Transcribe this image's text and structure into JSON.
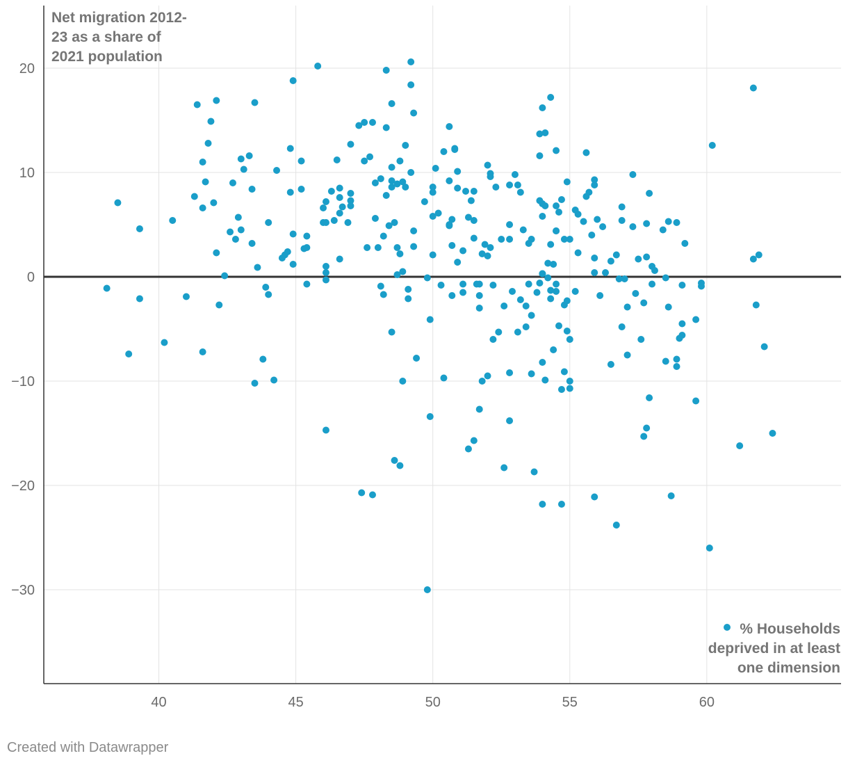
{
  "chart_data": {
    "type": "scatter",
    "title": "Net migration 2012-23 as a share of 2021 population",
    "ylabel_lines": [
      "Net migration 2012-",
      "23 as a share of",
      "2021 population"
    ],
    "legend_lines": [
      "% Households",
      "deprived in at least",
      "one dimension"
    ],
    "xlim": [
      35.8,
      64.9
    ],
    "ylim": [
      -39,
      26
    ],
    "x_ticks": [
      40,
      45,
      50,
      55,
      60
    ],
    "x_tick_labels": [
      "40",
      "45",
      "50",
      "55",
      "60"
    ],
    "y_ticks": [
      20,
      10,
      0,
      -10,
      -20,
      -30
    ],
    "y_tick_labels": [
      "20",
      "10",
      "0",
      "−10",
      "−20",
      "−30"
    ],
    "grid": true,
    "point_color": "#1a9ec9",
    "series": [
      {
        "name": "% Households deprived in at least one dimension",
        "points": [
          [
            38.1,
            -1.1
          ],
          [
            38.5,
            7.1
          ],
          [
            38.9,
            -7.4
          ],
          [
            39.3,
            4.6
          ],
          [
            39.3,
            -2.1
          ],
          [
            40.2,
            -6.3
          ],
          [
            40.5,
            5.4
          ],
          [
            41.0,
            -1.9
          ],
          [
            41.3,
            7.7
          ],
          [
            41.4,
            16.5
          ],
          [
            41.6,
            11.0
          ],
          [
            41.6,
            6.6
          ],
          [
            41.6,
            -7.2
          ],
          [
            41.7,
            9.1
          ],
          [
            41.8,
            12.8
          ],
          [
            41.9,
            14.9
          ],
          [
            42.0,
            7.1
          ],
          [
            42.1,
            16.9
          ],
          [
            42.1,
            2.3
          ],
          [
            42.2,
            -2.7
          ],
          [
            42.4,
            0.1
          ],
          [
            42.6,
            4.3
          ],
          [
            42.7,
            9.0
          ],
          [
            42.8,
            3.6
          ],
          [
            42.9,
            5.7
          ],
          [
            43.0,
            4.5
          ],
          [
            43.0,
            11.3
          ],
          [
            43.1,
            10.3
          ],
          [
            43.3,
            11.6
          ],
          [
            43.4,
            3.2
          ],
          [
            43.4,
            8.4
          ],
          [
            43.5,
            16.7
          ],
          [
            43.5,
            -10.2
          ],
          [
            43.6,
            0.9
          ],
          [
            43.8,
            -7.9
          ],
          [
            43.9,
            -1.0
          ],
          [
            44.0,
            -1.7
          ],
          [
            44.0,
            5.2
          ],
          [
            44.2,
            -9.9
          ],
          [
            44.3,
            10.2
          ],
          [
            44.5,
            1.8
          ],
          [
            44.6,
            2.1
          ],
          [
            44.7,
            2.4
          ],
          [
            44.8,
            12.3
          ],
          [
            44.8,
            8.1
          ],
          [
            44.9,
            4.1
          ],
          [
            44.9,
            1.2
          ],
          [
            44.9,
            18.8
          ],
          [
            45.2,
            11.1
          ],
          [
            45.2,
            8.4
          ],
          [
            45.3,
            2.7
          ],
          [
            45.4,
            3.9
          ],
          [
            45.4,
            2.8
          ],
          [
            45.4,
            -0.7
          ],
          [
            45.8,
            20.2
          ],
          [
            46.0,
            6.6
          ],
          [
            46.0,
            5.2
          ],
          [
            46.1,
            1.0
          ],
          [
            46.1,
            0.4
          ],
          [
            46.1,
            -0.3
          ],
          [
            46.1,
            5.2
          ],
          [
            46.1,
            7.2
          ],
          [
            46.1,
            -14.7
          ],
          [
            46.3,
            8.2
          ],
          [
            46.4,
            5.4
          ],
          [
            46.5,
            11.2
          ],
          [
            46.6,
            6.1
          ],
          [
            46.6,
            7.6
          ],
          [
            46.6,
            8.5
          ],
          [
            46.6,
            1.7
          ],
          [
            46.7,
            6.7
          ],
          [
            46.9,
            5.2
          ],
          [
            47.0,
            7.3
          ],
          [
            47.0,
            8.0
          ],
          [
            47.0,
            12.7
          ],
          [
            47.0,
            6.8
          ],
          [
            47.3,
            14.5
          ],
          [
            47.4,
            -20.7
          ],
          [
            47.5,
            11.1
          ],
          [
            47.5,
            14.8
          ],
          [
            47.6,
            2.8
          ],
          [
            47.7,
            11.5
          ],
          [
            47.8,
            14.8
          ],
          [
            47.8,
            -20.9
          ],
          [
            47.9,
            9.0
          ],
          [
            47.9,
            5.6
          ],
          [
            48.0,
            2.8
          ],
          [
            48.1,
            9.4
          ],
          [
            48.1,
            -0.9
          ],
          [
            48.2,
            -1.7
          ],
          [
            48.2,
            3.9
          ],
          [
            48.3,
            7.8
          ],
          [
            48.3,
            19.8
          ],
          [
            48.3,
            14.3
          ],
          [
            48.4,
            4.9
          ],
          [
            48.5,
            9.2
          ],
          [
            48.5,
            10.5
          ],
          [
            48.5,
            8.6
          ],
          [
            48.5,
            16.6
          ],
          [
            48.5,
            -5.3
          ],
          [
            48.6,
            5.2
          ],
          [
            48.6,
            -17.6
          ],
          [
            48.7,
            2.8
          ],
          [
            48.7,
            8.9
          ],
          [
            48.7,
            0.2
          ],
          [
            48.8,
            -18.1
          ],
          [
            48.8,
            2.2
          ],
          [
            48.8,
            11.1
          ],
          [
            48.9,
            9.1
          ],
          [
            48.9,
            0.5
          ],
          [
            48.9,
            -10.0
          ],
          [
            49.0,
            8.6
          ],
          [
            49.0,
            12.6
          ],
          [
            49.1,
            -2.1
          ],
          [
            49.1,
            -1.2
          ],
          [
            49.2,
            18.4
          ],
          [
            49.2,
            10.0
          ],
          [
            49.2,
            20.6
          ],
          [
            49.3,
            15.7
          ],
          [
            49.3,
            4.4
          ],
          [
            49.3,
            2.9
          ],
          [
            49.4,
            -7.8
          ],
          [
            49.7,
            7.2
          ],
          [
            49.8,
            -0.1
          ],
          [
            49.8,
            -30.0
          ],
          [
            49.9,
            -4.1
          ],
          [
            49.9,
            -13.4
          ],
          [
            50.0,
            2.1
          ],
          [
            50.0,
            5.8
          ],
          [
            50.0,
            8.1
          ],
          [
            50.0,
            8.6
          ],
          [
            50.1,
            10.4
          ],
          [
            50.2,
            6.1
          ],
          [
            50.3,
            -0.8
          ],
          [
            50.4,
            12.0
          ],
          [
            50.4,
            -9.7
          ],
          [
            50.6,
            5.0
          ],
          [
            50.6,
            9.2
          ],
          [
            50.6,
            14.4
          ],
          [
            50.6,
            4.9
          ],
          [
            50.7,
            5.5
          ],
          [
            50.7,
            3.0
          ],
          [
            50.7,
            -1.8
          ],
          [
            50.8,
            12.3
          ],
          [
            50.8,
            12.2
          ],
          [
            50.9,
            10.1
          ],
          [
            50.9,
            8.5
          ],
          [
            50.9,
            1.4
          ],
          [
            51.1,
            2.5
          ],
          [
            51.1,
            -0.7
          ],
          [
            51.1,
            -1.5
          ],
          [
            51.2,
            8.2
          ],
          [
            51.3,
            5.7
          ],
          [
            51.3,
            -16.5
          ],
          [
            51.4,
            7.3
          ],
          [
            51.5,
            3.7
          ],
          [
            51.5,
            -15.7
          ],
          [
            51.5,
            5.4
          ],
          [
            51.5,
            8.2
          ],
          [
            51.6,
            -0.7
          ],
          [
            51.7,
            -0.7
          ],
          [
            51.7,
            -1.8
          ],
          [
            51.7,
            -12.7
          ],
          [
            51.7,
            -3.0
          ],
          [
            51.8,
            2.2
          ],
          [
            51.8,
            -10.0
          ],
          [
            51.9,
            3.1
          ],
          [
            52.0,
            10.7
          ],
          [
            52.0,
            2.0
          ],
          [
            52.0,
            -9.5
          ],
          [
            52.1,
            2.8
          ],
          [
            52.1,
            9.6
          ],
          [
            52.1,
            9.9
          ],
          [
            52.2,
            -6.0
          ],
          [
            52.2,
            -0.8
          ],
          [
            52.3,
            8.6
          ],
          [
            52.4,
            -5.3
          ],
          [
            52.5,
            3.6
          ],
          [
            52.6,
            -18.3
          ],
          [
            52.6,
            -2.8
          ],
          [
            52.8,
            3.6
          ],
          [
            52.8,
            5.0
          ],
          [
            52.8,
            8.8
          ],
          [
            52.8,
            -9.2
          ],
          [
            52.8,
            -13.8
          ],
          [
            52.9,
            -1.4
          ],
          [
            53.0,
            9.8
          ],
          [
            53.1,
            8.8
          ],
          [
            53.1,
            -5.3
          ],
          [
            53.2,
            8.1
          ],
          [
            53.2,
            -2.2
          ],
          [
            53.3,
            4.5
          ],
          [
            53.4,
            -2.8
          ],
          [
            53.4,
            -4.8
          ],
          [
            53.5,
            3.2
          ],
          [
            53.5,
            -0.7
          ],
          [
            53.6,
            3.6
          ],
          [
            53.6,
            -3.7
          ],
          [
            53.6,
            -9.3
          ],
          [
            53.7,
            -18.7
          ],
          [
            53.8,
            -1.5
          ],
          [
            53.9,
            -0.6
          ],
          [
            53.9,
            13.7
          ],
          [
            53.9,
            11.6
          ],
          [
            53.9,
            7.3
          ],
          [
            54.0,
            16.2
          ],
          [
            54.0,
            7.0
          ],
          [
            54.0,
            5.8
          ],
          [
            54.0,
            0.3
          ],
          [
            54.0,
            0.3
          ],
          [
            54.0,
            -8.2
          ],
          [
            54.0,
            -21.8
          ],
          [
            54.1,
            13.8
          ],
          [
            54.1,
            6.8
          ],
          [
            54.1,
            -9.9
          ],
          [
            54.2,
            1.3
          ],
          [
            54.2,
            -0.1
          ],
          [
            54.3,
            3.1
          ],
          [
            54.3,
            17.2
          ],
          [
            54.3,
            -2.1
          ],
          [
            54.3,
            -1.3
          ],
          [
            54.4,
            -7.0
          ],
          [
            54.4,
            1.2
          ],
          [
            54.5,
            4.4
          ],
          [
            54.5,
            6.8
          ],
          [
            54.5,
            12.1
          ],
          [
            54.5,
            4.4
          ],
          [
            54.5,
            -0.7
          ],
          [
            54.5,
            -1.4
          ],
          [
            54.6,
            6.2
          ],
          [
            54.6,
            -4.7
          ],
          [
            54.7,
            7.4
          ],
          [
            54.7,
            -10.8
          ],
          [
            54.7,
            -21.8
          ],
          [
            54.8,
            3.6
          ],
          [
            54.8,
            -9.1
          ],
          [
            54.8,
            -2.7
          ],
          [
            54.9,
            9.1
          ],
          [
            54.9,
            -2.3
          ],
          [
            54.9,
            -5.2
          ],
          [
            55.0,
            -6.0
          ],
          [
            55.0,
            -10.0
          ],
          [
            55.0,
            -10.7
          ],
          [
            55.0,
            3.6
          ],
          [
            55.2,
            6.4
          ],
          [
            55.2,
            -1.4
          ],
          [
            55.3,
            6.0
          ],
          [
            55.3,
            2.3
          ],
          [
            55.5,
            5.3
          ],
          [
            55.6,
            7.7
          ],
          [
            55.6,
            11.9
          ],
          [
            55.7,
            8.1
          ],
          [
            55.8,
            4.0
          ],
          [
            55.9,
            9.3
          ],
          [
            55.9,
            8.8
          ],
          [
            55.9,
            1.8
          ],
          [
            55.9,
            0.4
          ],
          [
            55.9,
            -21.1
          ],
          [
            56.0,
            5.5
          ],
          [
            56.1,
            -1.8
          ],
          [
            56.2,
            4.8
          ],
          [
            56.3,
            0.4
          ],
          [
            56.5,
            1.5
          ],
          [
            56.5,
            -8.4
          ],
          [
            56.7,
            2.1
          ],
          [
            56.7,
            -23.8
          ],
          [
            56.8,
            -0.2
          ],
          [
            56.9,
            6.7
          ],
          [
            56.9,
            5.4
          ],
          [
            56.9,
            -4.8
          ],
          [
            57.0,
            -0.2
          ],
          [
            57.1,
            -7.5
          ],
          [
            57.1,
            -2.9
          ],
          [
            57.3,
            4.8
          ],
          [
            57.3,
            9.8
          ],
          [
            57.4,
            -1.6
          ],
          [
            57.5,
            1.7
          ],
          [
            57.6,
            -6.0
          ],
          [
            57.7,
            -2.5
          ],
          [
            57.7,
            -15.3
          ],
          [
            57.8,
            5.1
          ],
          [
            57.8,
            -14.5
          ],
          [
            57.8,
            1.9
          ],
          [
            57.9,
            8.0
          ],
          [
            57.9,
            -11.6
          ],
          [
            58.0,
            1.0
          ],
          [
            58.0,
            -0.7
          ],
          [
            58.1,
            0.6
          ],
          [
            58.4,
            4.5
          ],
          [
            58.5,
            -0.1
          ],
          [
            58.5,
            -8.1
          ],
          [
            58.6,
            -2.9
          ],
          [
            58.6,
            5.3
          ],
          [
            58.7,
            -21.0
          ],
          [
            58.9,
            5.2
          ],
          [
            58.9,
            -7.9
          ],
          [
            58.9,
            -8.6
          ],
          [
            59.0,
            -5.9
          ],
          [
            59.1,
            -4.5
          ],
          [
            59.1,
            -0.8
          ],
          [
            59.1,
            -5.6
          ],
          [
            59.2,
            3.2
          ],
          [
            59.6,
            -11.9
          ],
          [
            59.6,
            -4.1
          ],
          [
            59.8,
            -0.6
          ],
          [
            59.8,
            -0.9
          ],
          [
            60.1,
            -26.0
          ],
          [
            60.2,
            12.6
          ],
          [
            61.2,
            -16.2
          ],
          [
            61.7,
            18.1
          ],
          [
            61.7,
            1.7
          ],
          [
            61.8,
            -2.7
          ],
          [
            61.9,
            2.1
          ],
          [
            62.1,
            -6.7
          ],
          [
            62.4,
            -15.0
          ]
        ]
      }
    ]
  },
  "footer": {
    "credit": "Created with Datawrapper"
  }
}
